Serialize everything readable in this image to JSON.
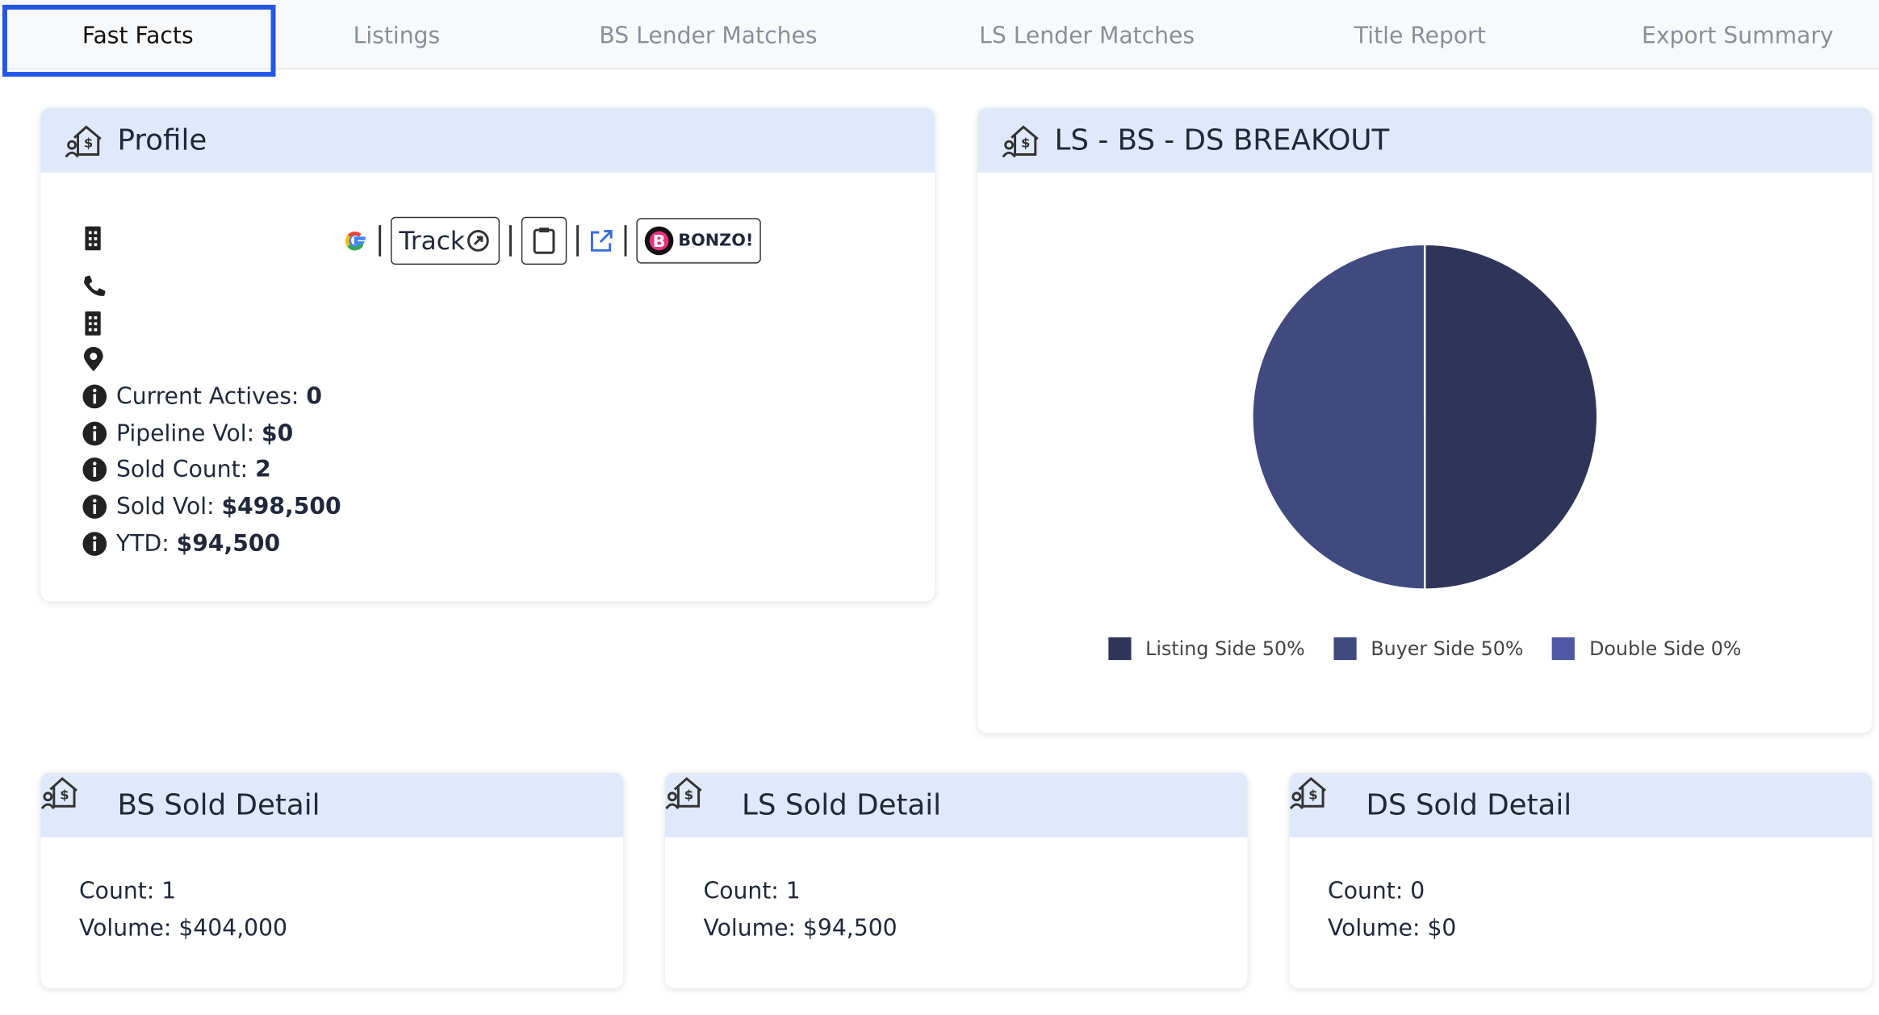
{
  "tabs": [
    "Fast Facts",
    "Listings",
    "BS Lender Matches",
    "LS Lender Matches",
    "Title Report",
    "Export Summary"
  ],
  "profile": {
    "title": "Profile",
    "track": "Track",
    "bonzo": "BONZO!",
    "stats": [
      {
        "label": "Current Actives:",
        "value": "0"
      },
      {
        "label": "Pipeline Vol:",
        "value": "$0"
      },
      {
        "label": "Sold Count:",
        "value": "2"
      },
      {
        "label": "Sold Vol:",
        "value": "$498,500"
      },
      {
        "label": "YTD:",
        "value": "$94,500"
      }
    ]
  },
  "breakout": {
    "title": "LS - BS - DS BREAKOUT",
    "chart_data": {
      "type": "pie",
      "labels": [
        "Listing Side",
        "Buyer Side",
        "Double Side"
      ],
      "values": [
        50,
        50,
        0
      ],
      "value_labels": [
        "50%",
        "50%",
        "0%"
      ],
      "colors": [
        "#2f3558",
        "#414a80",
        "#4d58a6"
      ]
    }
  },
  "sold_cards": [
    {
      "title": "BS Sold Detail",
      "count_label": "Count:",
      "count": "1",
      "volume_label": "Volume:",
      "volume": "$404,000"
    },
    {
      "title": "LS Sold Detail",
      "count_label": "Count:",
      "count": "1",
      "volume_label": "Volume:",
      "volume": "$94,500"
    },
    {
      "title": "DS Sold Detail",
      "count_label": "Count:",
      "count": "0",
      "volume_label": "Volume:",
      "volume": "$0"
    }
  ]
}
